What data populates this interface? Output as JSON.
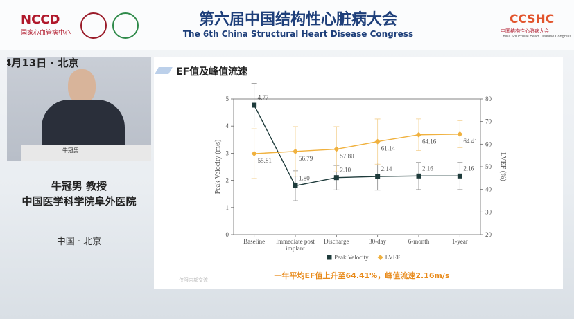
{
  "header": {
    "logo_left": "NCCD",
    "logo_left_sub": "国家心血管病中心",
    "title": "第六届中国结构性心脏病大会",
    "subtitle": "The 6th China Structural Heart Disease Congress",
    "logo_right": "CCSHC",
    "logo_right_cn": "中国结构性心脏病大会",
    "logo_right_en": "China Structural Heart Disease Congress"
  },
  "speaker": {
    "backdrop": "4月13日 · 北京",
    "nameplate": "牛冠男",
    "name": "牛冠男 教授",
    "affiliation": "中国医学科学院阜外医院",
    "location": "中国 · 北京"
  },
  "slide": {
    "title": "EF值及峰值流速",
    "conclusion": "一年平均EF值上升至64.41%，峰值流速2.16m/s",
    "watermark": "仅限内部交流"
  },
  "chart_data": {
    "type": "line",
    "ylabel": "Peak Velocity (m/s)",
    "y2label": "LVEF (%)",
    "categories": [
      "Baseline",
      "Immediate post implant",
      "Discharge",
      "30-day",
      "6-month",
      "1-year"
    ],
    "ylim": [
      0,
      5
    ],
    "yticks": [
      0,
      1,
      2,
      3,
      4,
      5
    ],
    "y2lim": [
      20,
      80
    ],
    "y2ticks": [
      20,
      30,
      40,
      50,
      60,
      70,
      80
    ],
    "legend": "bottom",
    "series": [
      {
        "name": "Peak Velocity",
        "color": "#1e3b3b",
        "marker": "square",
        "axis": "y",
        "values": [
          4.77,
          1.8,
          2.1,
          2.14,
          2.16,
          2.16
        ],
        "value_labels": [
          "4.77",
          "1.80",
          "2.10",
          "2.14",
          "2.16",
          "2.16"
        ],
        "errors": [
          0.8,
          0.55,
          0.45,
          0.5,
          0.5,
          0.5
        ]
      },
      {
        "name": "LVEF",
        "color": "#f0b13e",
        "marker": "diamond",
        "axis": "y2",
        "values": [
          55.81,
          56.79,
          57.8,
          61.14,
          64.16,
          64.41
        ],
        "value_labels": [
          "55.81",
          "56.79",
          "57.80",
          "61.14",
          "64.16",
          "64.41"
        ],
        "errors": [
          11,
          11,
          10,
          10,
          7,
          6
        ]
      }
    ]
  }
}
